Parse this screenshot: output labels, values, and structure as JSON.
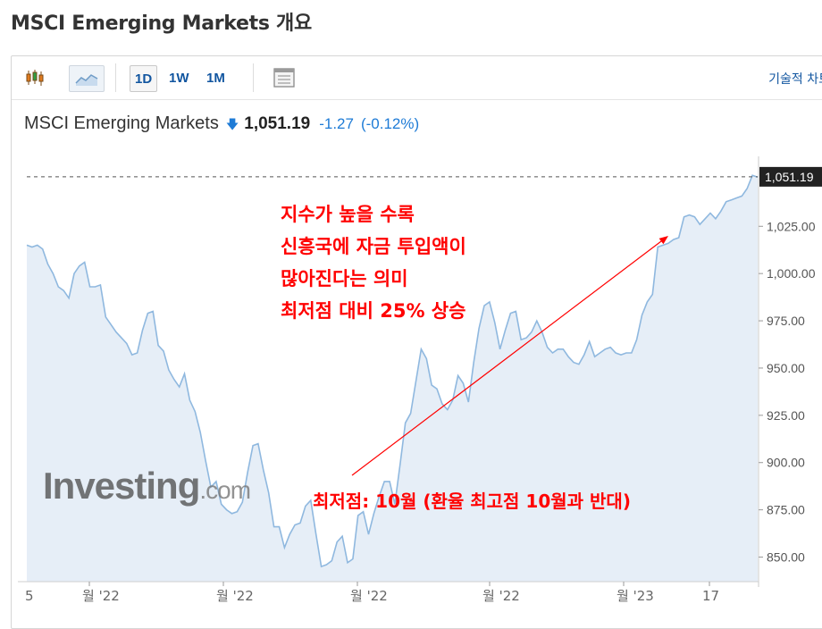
{
  "page_title": "MSCI Emerging Markets 개요",
  "toolbar": {
    "ranges": [
      "1D",
      "1W",
      "1M"
    ],
    "active_range": "1D",
    "tech_link": "기술적 차트",
    "icons": [
      "candlestick-icon",
      "area-chart-icon",
      "table-view-icon"
    ]
  },
  "quote": {
    "name": "MSCI Emerging Markets",
    "direction": "down",
    "price": "1,051.19",
    "change": "-1.27",
    "change_pct": "(-0.12%)",
    "change_color": "#1e7bd6"
  },
  "watermark": {
    "main": "Investing",
    "suffix": ".com"
  },
  "annotations": {
    "top_lines": [
      "지수가 높을 수록",
      "신흥국에 자금 투입액이",
      "많아진다는 의미",
      "최저점 대비 25% 상승"
    ],
    "low_note": "최저점: 10월 (환율 최고점 10월과 반대)",
    "color": "#ff0000"
  },
  "chart_data": {
    "type": "area",
    "series": [
      {
        "values": [
          1015,
          1014,
          1015,
          1013,
          1005,
          1000,
          993,
          991,
          987,
          1000,
          1004,
          1006,
          993,
          993,
          994,
          977,
          973,
          969,
          966,
          963,
          957,
          958,
          970,
          979,
          980,
          962,
          959,
          949,
          944,
          940,
          947,
          933,
          927,
          916,
          901,
          887,
          890,
          878,
          875,
          873,
          874,
          879,
          895,
          909,
          910,
          896,
          884,
          866,
          866,
          855,
          862,
          867,
          868,
          877,
          880,
          862,
          845,
          846,
          848,
          858,
          861,
          847,
          849,
          872,
          874,
          862,
          873,
          882,
          890,
          890,
          878,
          899,
          921,
          926,
          943,
          960,
          955,
          941,
          939,
          931,
          928,
          933,
          946,
          942,
          932,
          953,
          971,
          983,
          985,
          974,
          960,
          970,
          979,
          980,
          965,
          966,
          969,
          975,
          969,
          961,
          958,
          960,
          960,
          956,
          953,
          952,
          957,
          964,
          956,
          958,
          960,
          961,
          958,
          957,
          958,
          958,
          965,
          978,
          985,
          989,
          1014,
          1015,
          1016,
          1018,
          1019,
          1030,
          1031,
          1030,
          1026,
          1029,
          1032,
          1029,
          1033,
          1038,
          1039,
          1040,
          1041,
          1045,
          1052,
          1051
        ]
      }
    ],
    "x_tick_labels": [
      "5",
      "월 '22",
      "월 '22",
      "월 '22",
      "월 '22",
      "월 '23",
      "17"
    ],
    "y_ticks": [
      850,
      875,
      900,
      925,
      950,
      975,
      1000,
      1025
    ],
    "y_tick_labels": [
      "850.00",
      "875.00",
      "900.00",
      "925.00",
      "950.00",
      "975.00",
      "1,000.00",
      "1,025.00"
    ],
    "ylim": [
      837,
      1062
    ],
    "last_value_label": "1,051.19",
    "last_value": 1051.19,
    "line_color": "#8fb8df",
    "fill_color": "#e6eef7",
    "grid": false
  }
}
